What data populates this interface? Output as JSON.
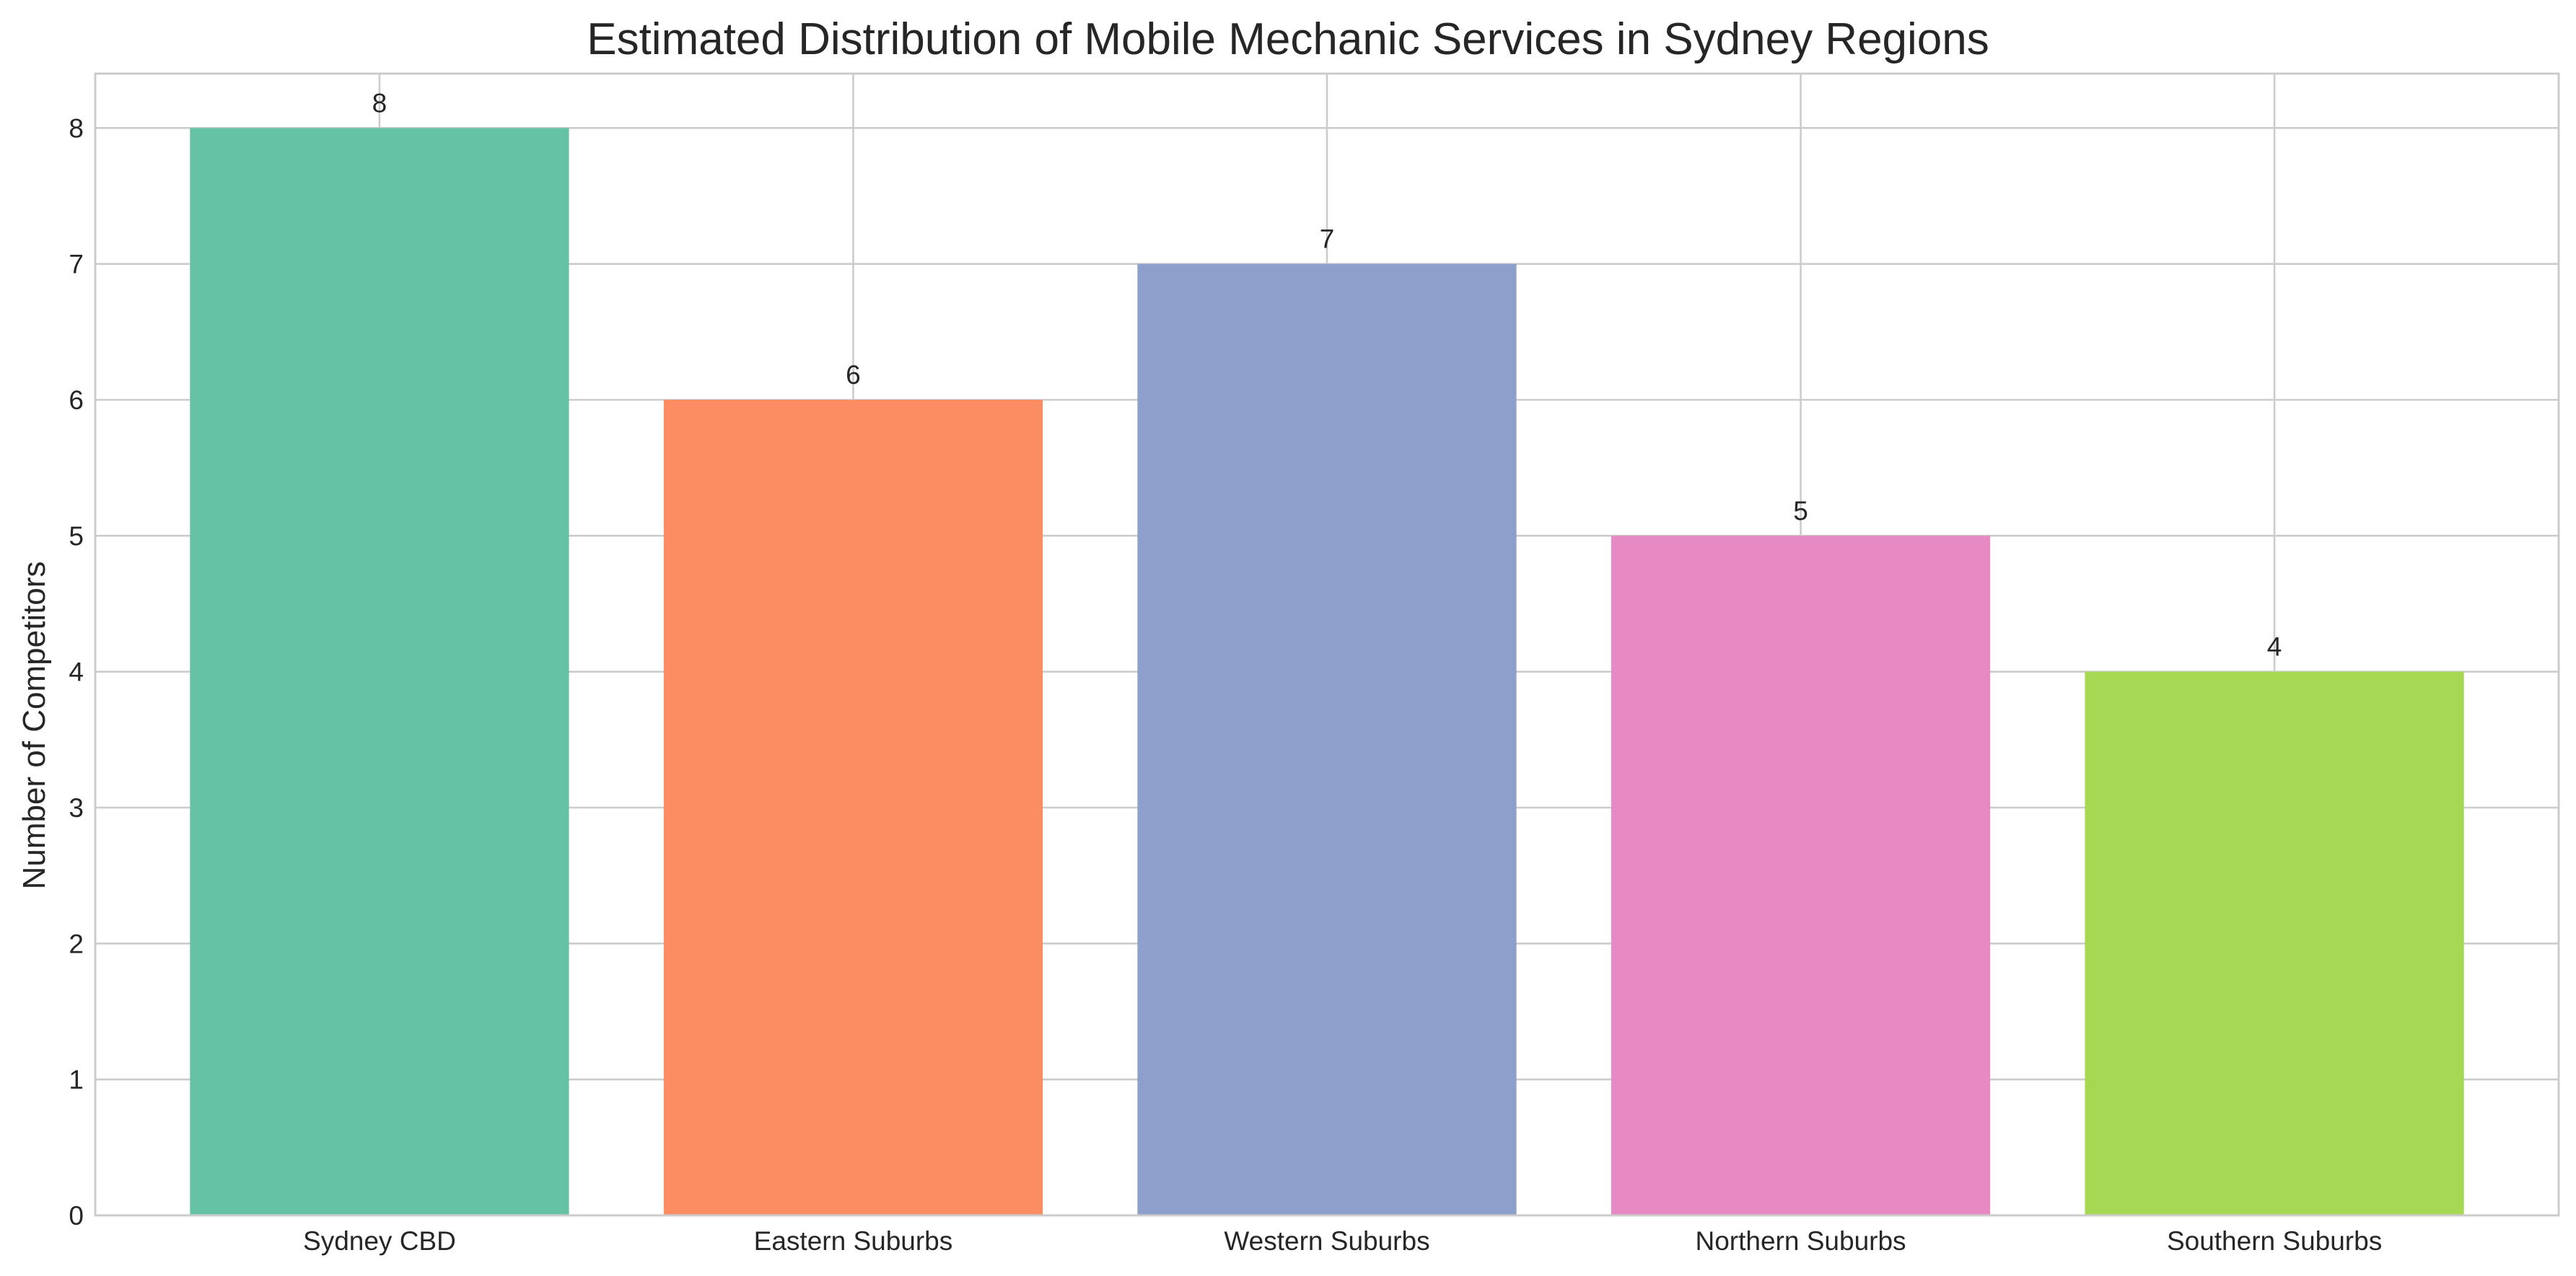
{
  "chart_data": {
    "type": "bar",
    "title": "Estimated Distribution of Mobile Mechanic Services in Sydney Regions",
    "xlabel": "",
    "ylabel": "Number of Competitors",
    "categories": [
      "Sydney CBD",
      "Eastern Suburbs",
      "Western Suburbs",
      "Northern Suburbs",
      "Southern Suburbs"
    ],
    "values": [
      8,
      6,
      7,
      5,
      4
    ],
    "data_labels": [
      "8",
      "6",
      "7",
      "5",
      "4"
    ],
    "colors": [
      "#66c2a5",
      "#fc8d62",
      "#8da0cb",
      "#e78ac3",
      "#a6d854"
    ],
    "ylim": [
      0,
      8.4
    ],
    "yticks": [
      0,
      1,
      2,
      3,
      4,
      5,
      6,
      7,
      8
    ],
    "grid": true,
    "legend": "none"
  }
}
